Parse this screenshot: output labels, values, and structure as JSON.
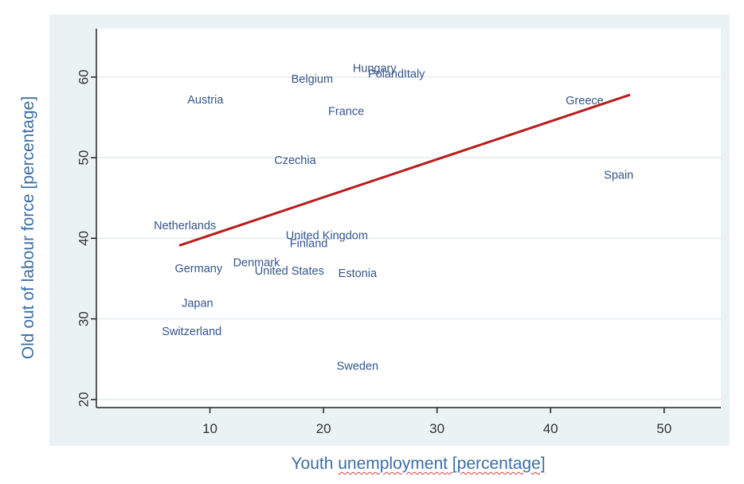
{
  "chart_data": {
    "type": "scatter",
    "title": "",
    "xlabel_parts": [
      "Youth ",
      "unemployment",
      " [percentage]"
    ],
    "ylabel": "Old out of labour force [percentage]",
    "xlim": [
      0,
      55
    ],
    "ylim": [
      19,
      66
    ],
    "xticks": [
      10,
      20,
      30,
      40,
      50
    ],
    "yticks": [
      20,
      30,
      40,
      50,
      60
    ],
    "grid": true,
    "points": [
      {
        "label": "Hungary",
        "x": 24.5,
        "y": 61
      },
      {
        "label": "Poland",
        "x": 25.5,
        "y": 60.3
      },
      {
        "label": "Italy",
        "x": 28,
        "y": 60.3
      },
      {
        "label": "Belgium",
        "x": 19,
        "y": 59.7
      },
      {
        "label": "Austria",
        "x": 9.6,
        "y": 57.1
      },
      {
        "label": "France",
        "x": 22,
        "y": 55.7
      },
      {
        "label": "Greece",
        "x": 43,
        "y": 57
      },
      {
        "label": "Czechia",
        "x": 17.5,
        "y": 49.6
      },
      {
        "label": "Spain",
        "x": 46,
        "y": 47.8
      },
      {
        "label": "Netherlands",
        "x": 7.8,
        "y": 41.5
      },
      {
        "label": "United Kingdom",
        "x": 20.3,
        "y": 40.3
      },
      {
        "label": "Finland",
        "x": 18.7,
        "y": 39.3
      },
      {
        "label": "Denmark",
        "x": 14.1,
        "y": 36.9
      },
      {
        "label": "Germany",
        "x": 9,
        "y": 36.2
      },
      {
        "label": "United States",
        "x": 17,
        "y": 35.9
      },
      {
        "label": "Estonia",
        "x": 23,
        "y": 35.6
      },
      {
        "label": "Japan",
        "x": 8.9,
        "y": 31.9
      },
      {
        "label": "Switzerland",
        "x": 8.4,
        "y": 28.4
      },
      {
        "label": "Sweden",
        "x": 23,
        "y": 24.1
      }
    ],
    "fit_line": {
      "x": [
        7.3,
        47
      ],
      "y": [
        39.1,
        57.8
      ],
      "color": "#b81d1d"
    },
    "colors": {
      "label": "#34558a",
      "axis_label": "#3b6ea3",
      "tick": "#333333",
      "grid": "#e3ecee"
    }
  }
}
